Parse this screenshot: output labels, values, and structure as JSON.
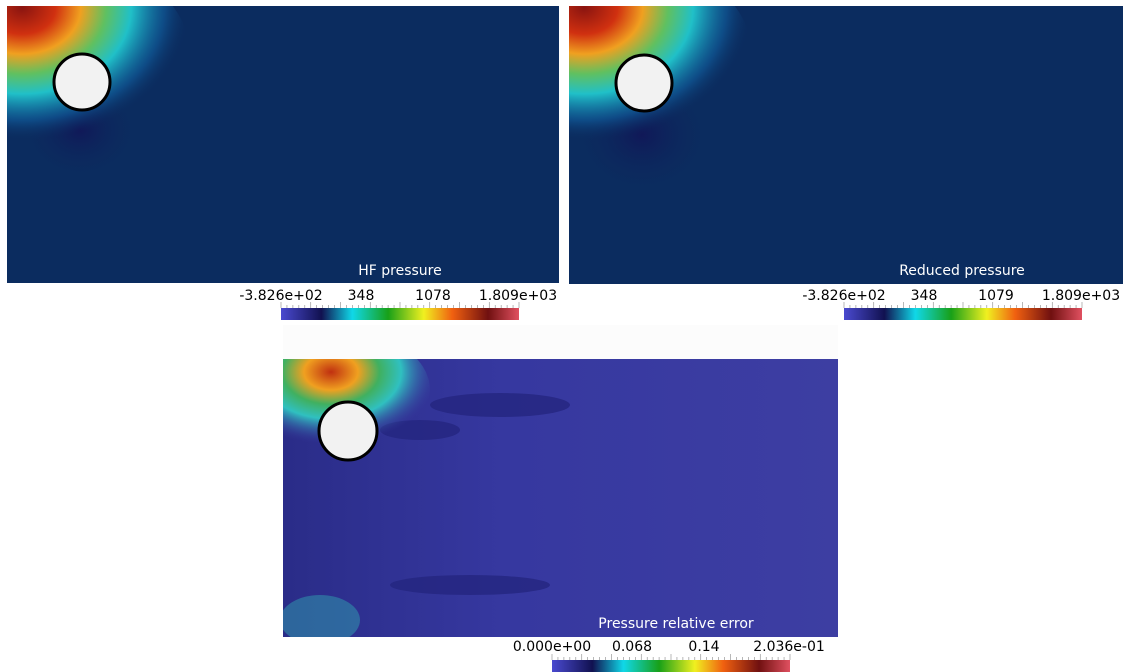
{
  "panels": [
    {
      "title": "HF pressure",
      "colorbar": {
        "labels": [
          "-3.826e+02",
          "348",
          "1078",
          "1.809e+03"
        ]
      }
    },
    {
      "title": "Reduced pressure",
      "colorbar": {
        "labels": [
          "-3.826e+02",
          "348",
          "1079",
          "1.809e+03"
        ]
      }
    },
    {
      "title": "Pressure relative error",
      "colorbar": {
        "labels": [
          "0.000e+00",
          "0.068",
          "0.14",
          "2.036e-01"
        ]
      }
    }
  ]
}
